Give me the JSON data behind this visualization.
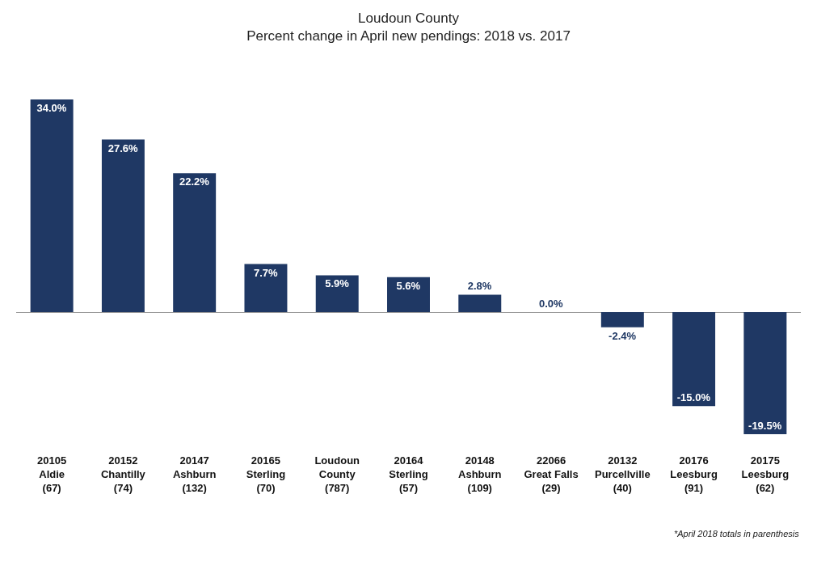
{
  "chart_data": {
    "type": "bar",
    "title": "Loudoun County",
    "subtitle": "Percent change in April new pendings: 2018 vs. 2017",
    "categories": [
      "20105\nAldie\n(67)",
      "20152\nChantilly\n(74)",
      "20147\nAshburn\n(132)",
      "20165\nSterling\n(70)",
      "Loudoun\nCounty\n(787)",
      "20164\nSterling\n(57)",
      "20148\nAshburn\n(109)",
      "22066\nGreat Falls\n(29)",
      "20132\nPurcellville\n(40)",
      "20176\nLeesburg\n(91)",
      "20175\nLeesburg\n(62)"
    ],
    "values": [
      34.0,
      27.6,
      22.2,
      7.7,
      5.9,
      5.6,
      2.8,
      0.0,
      -2.4,
      -15.0,
      -19.5
    ],
    "value_labels": [
      "34.0%",
      "27.6%",
      "22.2%",
      "7.7%",
      "5.9%",
      "5.6%",
      "2.8%",
      "0.0%",
      "-2.4%",
      "-15.0%",
      "-19.5%"
    ],
    "color": "#1f3864",
    "legend": false,
    "annotations": [
      "*April 2018 totals in parenthesis"
    ]
  }
}
